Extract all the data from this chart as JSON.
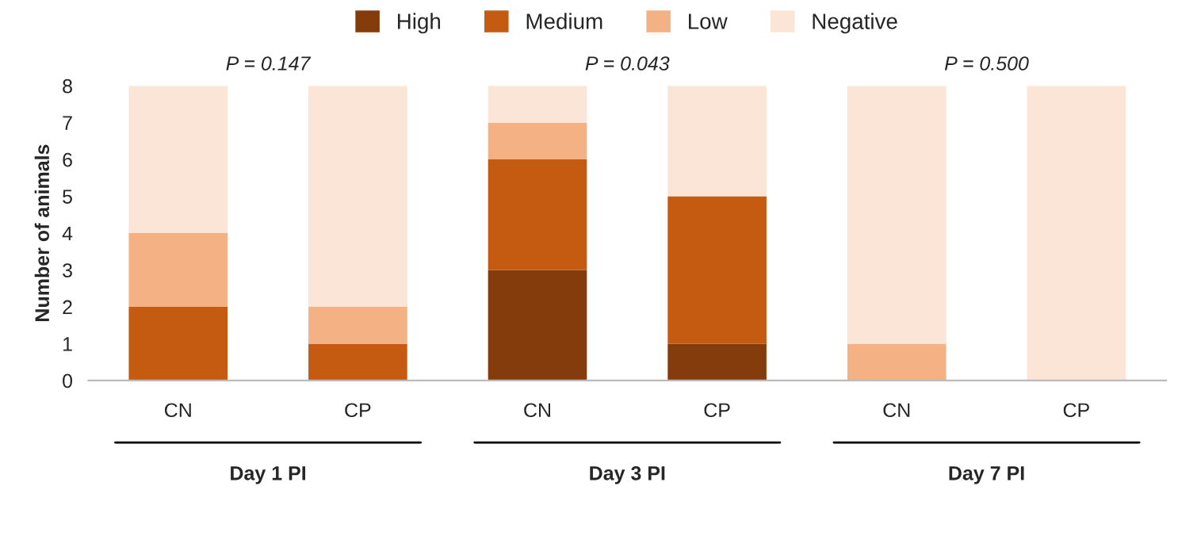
{
  "chart_data": {
    "type": "bar",
    "stacked": true,
    "ylabel": "Number of animals",
    "categories": [
      "CN",
      "CP",
      "CN",
      "CP",
      "CN",
      "CP"
    ],
    "series": [
      {
        "name": "High",
        "color": "#843c0c",
        "values": [
          0,
          0,
          3,
          1,
          0,
          0
        ]
      },
      {
        "name": "Medium",
        "color": "#c55a11",
        "values": [
          2,
          1,
          3,
          4,
          0,
          0
        ]
      },
      {
        "name": "Low",
        "color": "#f4b183",
        "values": [
          2,
          1,
          1,
          0,
          1,
          0
        ]
      },
      {
        "name": "Negative",
        "color": "#fbe5d6",
        "values": [
          4,
          6,
          1,
          3,
          7,
          8
        ]
      }
    ],
    "ylim": [
      0,
      8
    ],
    "yticks": [
      0,
      1,
      2,
      3,
      4,
      5,
      6,
      7,
      8
    ],
    "grid": false,
    "legend": "top",
    "annotations": [
      "P = 0.147",
      "P = 0.043",
      "P = 0.500",
      "Day 1 PI",
      "Day 3 PI",
      "Day 7 PI"
    ]
  }
}
